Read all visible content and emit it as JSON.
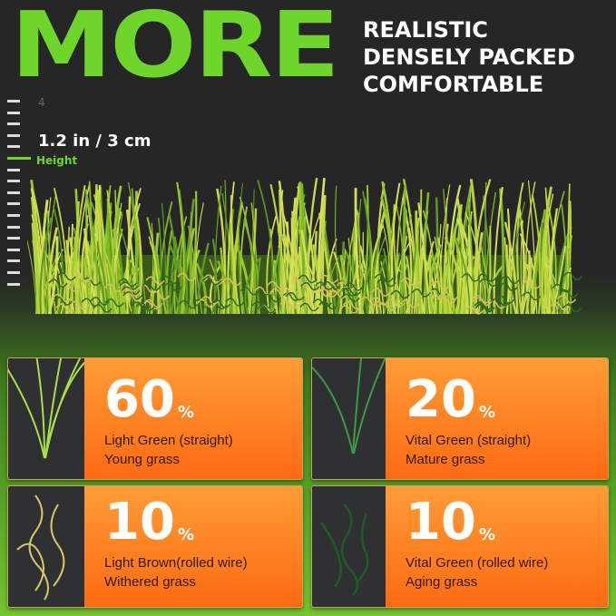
{
  "headline": "MORE",
  "taglines": [
    "REALISTIC",
    "DENSELY PACKED",
    "COMFORTABLE"
  ],
  "ruler": {
    "top_number": "4",
    "height_value": "1.2 in / 3 cm",
    "height_label": "Height"
  },
  "colors": {
    "accent_green": "#6ed62a",
    "orange": "#ff7a1e",
    "dark": "#262626"
  },
  "cards": [
    {
      "percent": "60",
      "unit": "%",
      "line1": "Light  Green (straight)",
      "line2": "Young grass",
      "icon": "straight-light-green-blades"
    },
    {
      "percent": "20",
      "unit": "%",
      "line1": "Vital Green (straight)",
      "line2": "Mature grass",
      "icon": "straight-vital-green-blades"
    },
    {
      "percent": "10",
      "unit": "%",
      "line1": "Light Brown(rolled wire)",
      "line2": "Withered grass",
      "icon": "rolled-brown-blades"
    },
    {
      "percent": "10",
      "unit": "%",
      "line1": "Vital Green (rolled wire)",
      "line2": "Aging grass",
      "icon": "rolled-green-blades"
    }
  ]
}
